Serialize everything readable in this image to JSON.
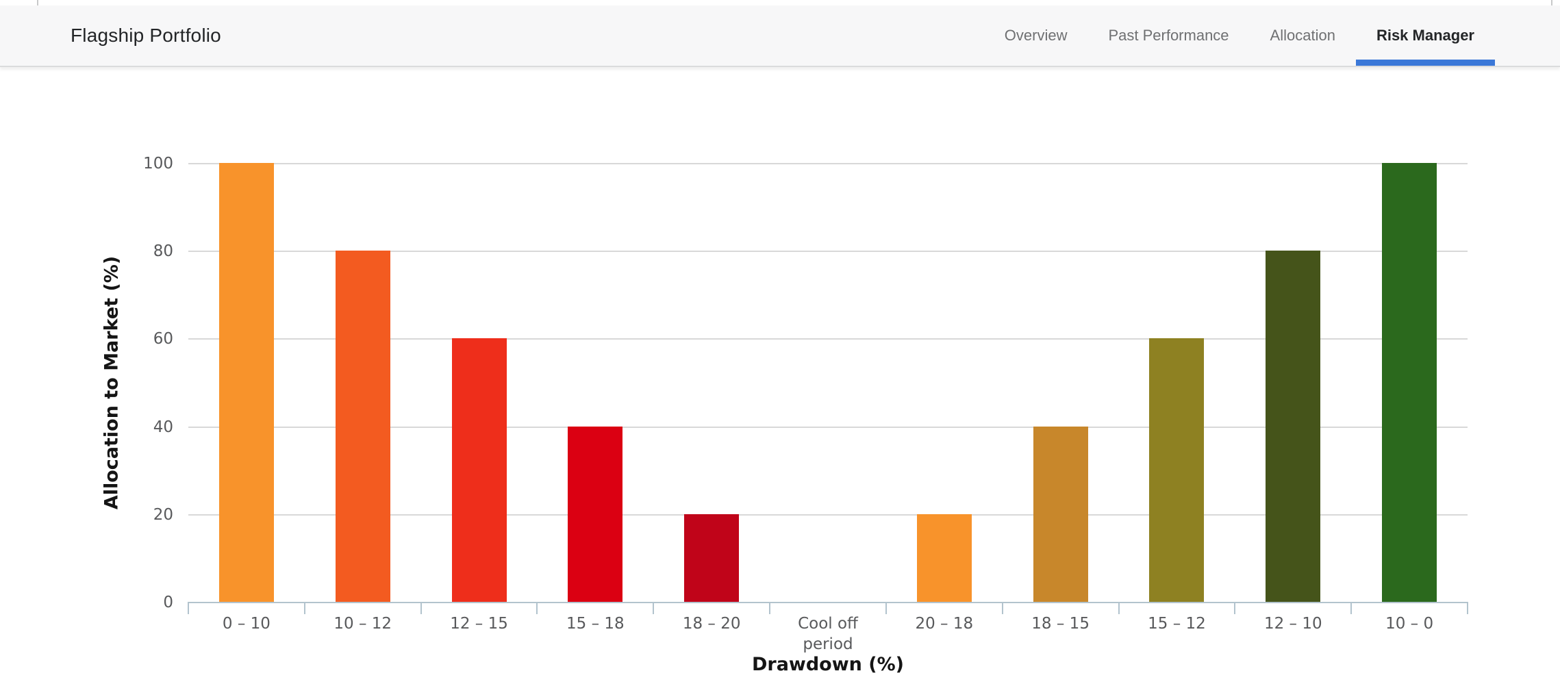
{
  "header": {
    "title": "Flagship Portfolio",
    "tabs": [
      {
        "label": "Overview",
        "active": false
      },
      {
        "label": "Past Performance",
        "active": false
      },
      {
        "label": "Allocation",
        "active": false
      },
      {
        "label": "Risk Manager",
        "active": true
      }
    ],
    "active_tab_underline_color": "#3b78d8"
  },
  "chart_data": {
    "type": "bar",
    "title": "",
    "xlabel": "Drawdown (%)",
    "ylabel": "Allocation to Market (%)",
    "categories": [
      "0 – 10",
      "10 – 12",
      "12 – 15",
      "15 – 18",
      "18 – 20",
      "Cool off\nperiod",
      "20 – 18",
      "18 – 15",
      "15 – 12",
      "12 – 10",
      "10 – 0"
    ],
    "values": [
      100,
      80,
      60,
      40,
      20,
      0,
      20,
      40,
      60,
      80,
      100
    ],
    "bar_colors": [
      "#f8932b",
      "#f35b20",
      "#ee2e1b",
      "#db0012",
      "#c00419",
      null,
      "#f8932b",
      "#c8872b",
      "#8e8122",
      "#45541a",
      "#2b691d"
    ],
    "yticks": [
      0,
      20,
      40,
      60,
      80,
      100
    ],
    "ylim": [
      0,
      100
    ],
    "grid": true,
    "legend": "none",
    "gridline_color": "#d8d8d8",
    "axis_line_color": "#b2c3cd",
    "tick_label_color": "#58595b"
  }
}
